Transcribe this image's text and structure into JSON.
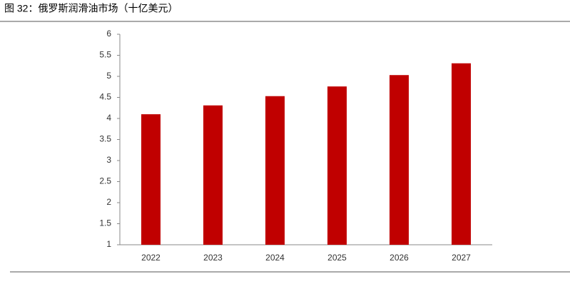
{
  "chart_data": {
    "type": "bar",
    "title": "图 32：俄罗斯润滑油市场（十亿美元）",
    "categories": [
      "2022",
      "2023",
      "2024",
      "2025",
      "2026",
      "2027"
    ],
    "values": [
      4.1,
      4.31,
      4.53,
      4.76,
      5.03,
      5.31
    ],
    "color": "#c00000",
    "ylim": [
      1,
      6
    ],
    "yticks": [
      1,
      1.5,
      2,
      2.5,
      3,
      3.5,
      4,
      4.5,
      5,
      5.5,
      6
    ],
    "grid": false
  }
}
